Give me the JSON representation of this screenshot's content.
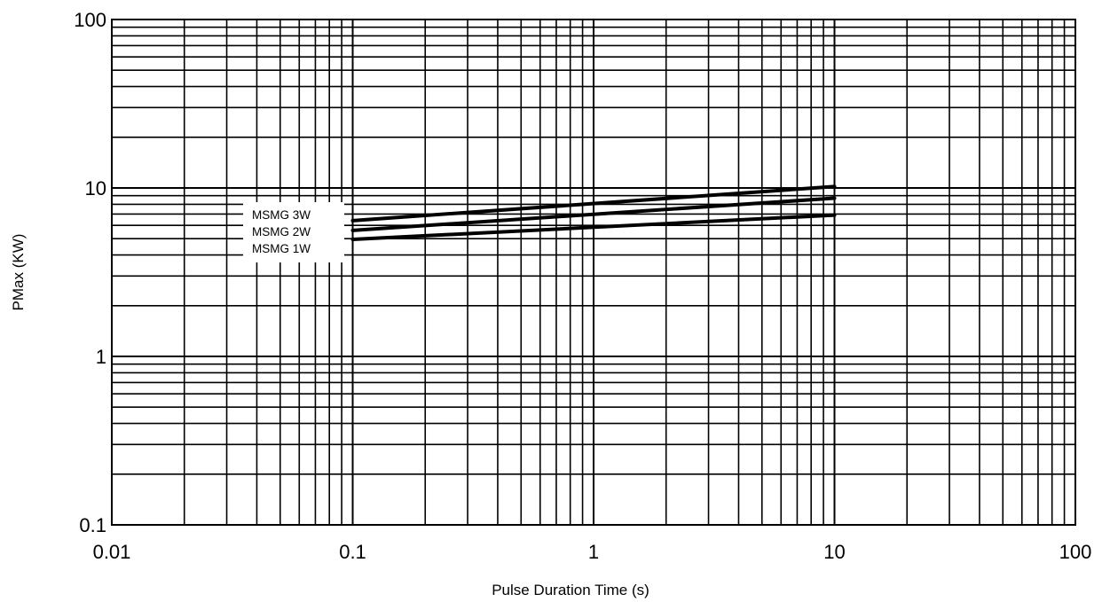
{
  "chart_data": {
    "type": "line",
    "title": "",
    "xlabel": "Pulse Duration Time (s)",
    "ylabel": "PMax (KW)",
    "x_scale": "log",
    "y_scale": "log",
    "xlim": [
      0.01,
      100
    ],
    "ylim": [
      0.1,
      100
    ],
    "grid": true,
    "x_ticks": [
      0.01,
      0.1,
      1,
      10,
      100
    ],
    "x_tick_labels": [
      "0.01",
      "0.1",
      "1",
      "10",
      "100"
    ],
    "y_ticks": [
      0.1,
      1,
      10,
      100
    ],
    "y_tick_labels": [
      "0.1",
      "1",
      "10",
      "100"
    ],
    "legend_position": "left",
    "series": [
      {
        "name": "MSMG 3W",
        "x": [
          0.1,
          10
        ],
        "y": [
          6.4,
          10.2
        ]
      },
      {
        "name": "MSMG 2W",
        "x": [
          0.1,
          10
        ],
        "y": [
          5.6,
          8.7
        ]
      },
      {
        "name": "MSMG 1W",
        "x": [
          0.1,
          10
        ],
        "y": [
          4.95,
          6.9
        ]
      }
    ],
    "line_color": "#000000"
  }
}
